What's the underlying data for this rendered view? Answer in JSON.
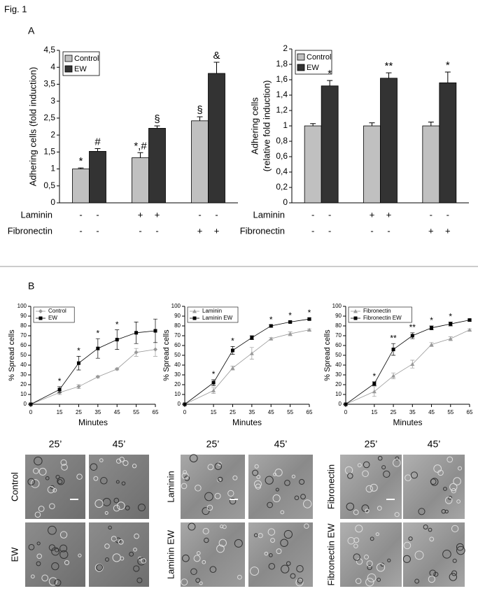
{
  "figure_label": "Fig. 1",
  "panel_labels": [
    "A",
    "B"
  ],
  "chart_data": [
    {
      "type": "bar",
      "ylabel": [
        "Adhering cells (fold induction)"
      ],
      "categories": [
        null,
        null,
        null
      ],
      "conditions": [
        {
          "name": "Laminin",
          "labels": [
            "-",
            "-",
            "+",
            "+",
            "-",
            "-"
          ]
        },
        {
          "name": "Fibronectin",
          "labels": [
            "-",
            "-",
            "-",
            "-",
            "+",
            "+"
          ]
        }
      ],
      "series": [
        {
          "name": "Control",
          "color": "#c0c0c0",
          "values": [
            1,
            1.33,
            2.42
          ],
          "errors": [
            0.03,
            0.15,
            0.12
          ],
          "annotations": [
            "*",
            "*,#",
            "§"
          ]
        },
        {
          "name": "EW",
          "color": "#333333",
          "values": [
            1.52,
            2.2,
            3.82
          ],
          "errors": [
            0.08,
            0.07,
            0.33
          ],
          "annotations": [
            "#",
            "§",
            "&"
          ]
        }
      ],
      "ylim": [
        0,
        4.5
      ],
      "yticks": [
        0,
        {
          "value": 0.5,
          "label": "0,5"
        },
        1,
        {
          "value": 1.5,
          "label": "1,5"
        },
        2,
        {
          "value": 2.5,
          "label": "2,5"
        },
        3,
        {
          "value": 3.5,
          "label": "3,5"
        },
        4,
        {
          "value": 4.5,
          "label": "4,5"
        }
      ]
    },
    {
      "type": "bar",
      "ylabel": [
        "Adhering cells",
        "(relative fold induction)"
      ],
      "categories": [
        null,
        null,
        null
      ],
      "conditions": [
        {
          "name": "Laminin",
          "labels": [
            "-",
            "-",
            "+",
            "+",
            "-",
            "-"
          ]
        },
        {
          "name": "Fibronectin",
          "labels": [
            "-",
            "-",
            "-",
            "-",
            "+",
            "+"
          ]
        }
      ],
      "series": [
        {
          "name": "Control",
          "color": "#c0c0c0",
          "values": [
            1,
            1,
            1
          ],
          "errors": [
            0.03,
            0.04,
            0.05
          ]
        },
        {
          "name": "EW",
          "color": "#333333",
          "values": [
            1.52,
            1.62,
            1.56
          ],
          "errors": [
            0.07,
            0.07,
            0.14
          ],
          "annotations": [
            "*",
            "**",
            "*"
          ]
        }
      ],
      "ylim": [
        0,
        2
      ],
      "yticks": [
        0,
        {
          "value": 0.2,
          "label": "0,2"
        },
        {
          "value": 0.4,
          "label": "0,4"
        },
        {
          "value": 0.6,
          "label": "0,6"
        },
        {
          "value": 0.8,
          "label": "0,8"
        },
        1,
        {
          "value": 1.2,
          "label": "1,2"
        },
        {
          "value": 1.4,
          "label": "1,4"
        },
        {
          "value": 1.6,
          "label": "1,6"
        },
        {
          "value": 1.8,
          "label": "1,8"
        },
        2
      ]
    },
    {
      "type": "line",
      "xlabel": "Minutes",
      "ylabel": [
        "% Spread cells"
      ],
      "x": [
        0,
        15,
        25,
        35,
        45,
        55,
        65
      ],
      "xlim": [
        0,
        65
      ],
      "xticks": [
        0,
        15,
        25,
        35,
        45,
        55,
        65
      ],
      "ylim": [
        0,
        100
      ],
      "yticks": [
        0,
        10,
        20,
        30,
        40,
        50,
        60,
        70,
        80,
        90,
        100
      ],
      "series": [
        {
          "name": "Control",
          "color": "#999999",
          "marker": "diamond",
          "values": [
            0,
            12,
            18,
            28,
            36,
            53,
            56
          ],
          "errors": [
            0,
            2,
            2,
            1,
            1,
            4,
            7
          ]
        },
        {
          "name": "EW",
          "color": "#000000",
          "marker": "square",
          "values": [
            0,
            15,
            42,
            57,
            66,
            73,
            75
          ],
          "errors": [
            0,
            3,
            7,
            10,
            10,
            11,
            12
          ],
          "annotations": [
            null,
            "*",
            "*",
            "*",
            "*",
            null,
            null
          ]
        }
      ]
    },
    {
      "type": "line",
      "xlabel": "Minutes",
      "ylabel": [
        "% Spread cells"
      ],
      "x": [
        0,
        15,
        25,
        35,
        45,
        55,
        65
      ],
      "xlim": [
        0,
        65
      ],
      "xticks": [
        0,
        15,
        25,
        35,
        45,
        55,
        65
      ],
      "ylim": [
        0,
        100
      ],
      "yticks": [
        0,
        10,
        20,
        30,
        40,
        50,
        60,
        70,
        80,
        90,
        100
      ],
      "series": [
        {
          "name": "Laminin",
          "color": "#999999",
          "marker": "triangle",
          "values": [
            0,
            14,
            37,
            52,
            67,
            72,
            76
          ],
          "errors": [
            0,
            3,
            2,
            6,
            1,
            2,
            1
          ]
        },
        {
          "name": "Laminin EW",
          "color": "#000000",
          "marker": "square",
          "values": [
            0,
            22,
            55,
            68,
            80,
            84,
            87
          ],
          "errors": [
            0,
            3,
            4,
            2,
            1,
            1,
            1
          ],
          "annotations": [
            null,
            "*",
            "*",
            null,
            "*",
            "*",
            "*"
          ]
        }
      ]
    },
    {
      "type": "line",
      "xlabel": "Minutes",
      "ylabel": [
        "% Spread cells"
      ],
      "x": [
        0,
        15,
        25,
        35,
        45,
        55,
        65
      ],
      "xlim": [
        0,
        65
      ],
      "xticks": [
        0,
        15,
        25,
        35,
        45,
        55,
        65
      ],
      "ylim": [
        0,
        100
      ],
      "yticks": [
        0,
        10,
        20,
        30,
        40,
        50,
        60,
        70,
        80,
        90,
        100
      ],
      "series": [
        {
          "name": "Fibronectin",
          "color": "#999999",
          "marker": "triangle",
          "values": [
            0,
            13,
            29,
            41,
            61,
            67,
            76
          ],
          "errors": [
            0,
            5,
            3,
            4,
            2,
            2,
            1
          ]
        },
        {
          "name": "Fibronectin EW",
          "color": "#000000",
          "marker": "square",
          "values": [
            0,
            21,
            56,
            70,
            78,
            82,
            86
          ],
          "errors": [
            0,
            2,
            6,
            3,
            2,
            2,
            1
          ],
          "annotations": [
            null,
            "*",
            "**",
            "**",
            "*",
            "*",
            null
          ]
        }
      ]
    }
  ],
  "image_panels": [
    {
      "columns": [
        "25’",
        "45’"
      ],
      "rows": [
        "Control",
        "EW"
      ]
    },
    {
      "columns": [
        "25’",
        "45’"
      ],
      "rows": [
        "Laminin",
        "Laminin EW"
      ]
    },
    {
      "columns": [
        "25’",
        "45’"
      ],
      "rows": [
        "Fibronectin",
        "Fibronectin EW"
      ]
    }
  ]
}
